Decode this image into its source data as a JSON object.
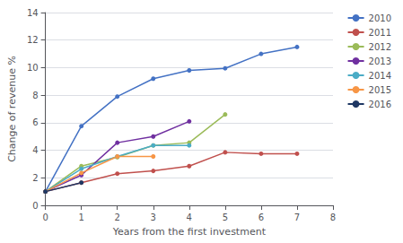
{
  "chart_data": {
    "type": "line",
    "xlabel": "Years from the first investment",
    "ylabel": "Change of revenue %",
    "xlim": [
      0,
      8
    ],
    "ylim": [
      0,
      14
    ],
    "xticks": [
      0,
      1,
      2,
      3,
      4,
      5,
      6,
      7,
      8
    ],
    "yticks": [
      0,
      2,
      4,
      6,
      8,
      10,
      12,
      14
    ],
    "grid": true,
    "legend": "right",
    "series": [
      {
        "name": "2010",
        "color": "#4472C4",
        "marker": "circle",
        "x": [
          0,
          1,
          2,
          3,
          4,
          5,
          6,
          7
        ],
        "values": [
          1.0,
          5.75,
          7.9,
          9.2,
          9.8,
          9.95,
          11.0,
          11.5
        ]
      },
      {
        "name": "2011",
        "color": "#C0504D",
        "marker": "circle",
        "x": [
          0,
          1,
          2,
          3,
          4,
          5,
          6,
          7
        ],
        "values": [
          1.0,
          1.65,
          2.3,
          2.5,
          2.85,
          3.85,
          3.75,
          3.75
        ]
      },
      {
        "name": "2012",
        "color": "#9BBB59",
        "marker": "circle",
        "x": [
          0,
          1,
          2,
          3,
          4,
          5
        ],
        "values": [
          1.0,
          2.85,
          3.5,
          4.35,
          4.55,
          6.6
        ]
      },
      {
        "name": "2013",
        "color": "#7030A0",
        "marker": "circle",
        "x": [
          0,
          1,
          2,
          3,
          4
        ],
        "values": [
          1.0,
          2.2,
          4.55,
          5.0,
          6.1
        ]
      },
      {
        "name": "2014",
        "color": "#4BACC6",
        "marker": "circle",
        "x": [
          0,
          1,
          2,
          3,
          4
        ],
        "values": [
          1.0,
          2.65,
          3.55,
          4.35,
          4.35
        ]
      },
      {
        "name": "2015",
        "color": "#F79646",
        "marker": "circle",
        "x": [
          0,
          1,
          2,
          3
        ],
        "values": [
          1.0,
          2.35,
          3.55,
          3.55
        ]
      },
      {
        "name": "2016",
        "color": "#1F3864",
        "marker": "circle",
        "x": [
          0,
          1
        ],
        "values": [
          1.0,
          1.65
        ]
      }
    ]
  }
}
